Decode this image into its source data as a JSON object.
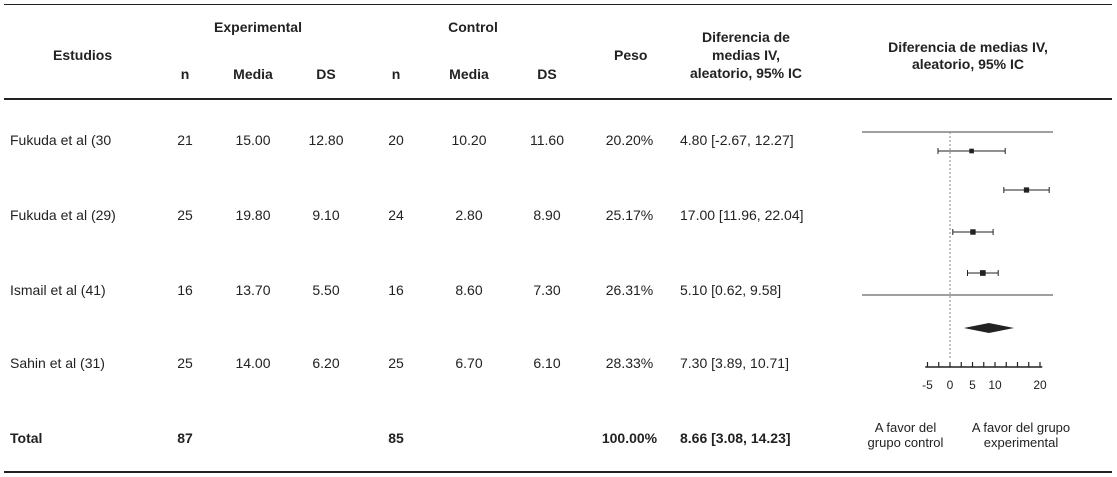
{
  "header": {
    "studies": "Estudios",
    "experimental": "Experimental",
    "control": "Control",
    "weight": "Peso",
    "md_line1": "Diferencia de",
    "md_line2": "medias IV,",
    "md_line3": "aleatorio, 95% IC",
    "plot_line1": "Diferencia de medias IV,",
    "plot_line2": "aleatorio, 95% IC",
    "sub_n": "n",
    "sub_mean": "Media",
    "sub_sd": "DS"
  },
  "rows": [
    {
      "study": "Fukuda et al (30",
      "exp_n": "21",
      "exp_mean": "15.00",
      "exp_sd": "12.80",
      "ctl_n": "20",
      "ctl_mean": "10.20",
      "ctl_sd": "11.60",
      "weight": "20.20%",
      "md": "4.80 [-2.67, 12.27]"
    },
    {
      "study": "Fukuda et al (29)",
      "exp_n": "25",
      "exp_mean": "19.80",
      "exp_sd": "9.10",
      "ctl_n": "24",
      "ctl_mean": "2.80",
      "ctl_sd": "8.90",
      "weight": "25.17%",
      "md": "17.00 [11.96, 22.04]"
    },
    {
      "study": "Ismail et al (41)",
      "exp_n": "16",
      "exp_mean": "13.70",
      "exp_sd": "5.50",
      "ctl_n": "16",
      "ctl_mean": "8.60",
      "ctl_sd": "7.30",
      "weight": "26.31%",
      "md": "5.10 [0.62, 9.58]"
    },
    {
      "study": "Sahin et al (31)",
      "exp_n": "25",
      "exp_mean": "14.00",
      "exp_sd": "6.20",
      "ctl_n": "25",
      "ctl_mean": "6.70",
      "ctl_sd": "6.10",
      "weight": "28.33%",
      "md": "7.30 [3.89, 10.71]"
    }
  ],
  "total": {
    "label": "Total",
    "exp_n": "87",
    "ctl_n": "85",
    "weight": "100.00%",
    "md": "8.66 [3.08, 14.23]"
  },
  "footer": {
    "favors_control_1": "A favor del",
    "favors_control_2": "grupo control",
    "favors_experimental_1": "A favor del grupo",
    "favors_experimental_2": "experimental"
  },
  "chart_data": {
    "type": "forest",
    "xlim": [
      -5,
      20
    ],
    "ticks": [
      -5,
      0,
      5,
      10,
      20
    ],
    "tick_labels": [
      "-5",
      "0",
      "5",
      "10",
      "20"
    ],
    "studies": [
      {
        "label": "Fukuda et al (30",
        "estimate": 4.8,
        "ci": [
          -2.67,
          12.27
        ],
        "weight": 20.2
      },
      {
        "label": "Fukuda et al (29)",
        "estimate": 17.0,
        "ci": [
          11.96,
          22.04
        ],
        "weight": 25.17
      },
      {
        "label": "Ismail et al (41)",
        "estimate": 5.1,
        "ci": [
          0.62,
          9.58
        ],
        "weight": 26.31
      },
      {
        "label": "Sahin et al (31)",
        "estimate": 7.3,
        "ci": [
          3.89,
          10.71
        ],
        "weight": 28.33
      }
    ],
    "pooled": {
      "estimate": 8.66,
      "ci": [
        3.08,
        14.23
      ]
    },
    "colors": {
      "line": "#222222",
      "reference": "#888888"
    }
  }
}
